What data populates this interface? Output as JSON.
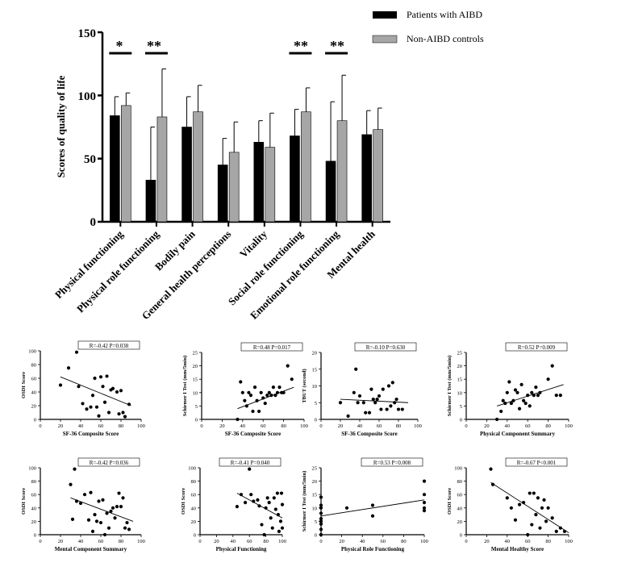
{
  "main_chart": {
    "ylabel": "Scores of quality of life",
    "y_ticks": [
      "0",
      "50",
      "100",
      "150"
    ],
    "ylim": [
      0,
      150
    ],
    "legend": [
      {
        "label": "Patients with AIBD",
        "color": "#000000"
      },
      {
        "label": "Non-AIBD controls",
        "color": "#a6a6a6"
      }
    ],
    "significance_marks": [
      "*",
      "**",
      "**",
      "**"
    ]
  },
  "chart_data": [
    {
      "type": "bar",
      "categories": [
        "Physical functioning",
        "Physical role functioning",
        "Bodily pain",
        "General health perceptions",
        "Vitality",
        "Social role functioning",
        "Emotional role functioning",
        "Mental health"
      ],
      "series": [
        {
          "name": "Patients with AIBD",
          "values": [
            84,
            33,
            75,
            45,
            63,
            68,
            48,
            69
          ],
          "error": [
            15,
            42,
            24,
            21,
            17,
            21,
            47,
            19
          ]
        },
        {
          "name": "Non-AIBD controls",
          "values": [
            92,
            83,
            87,
            55,
            59,
            87,
            80,
            73
          ],
          "error": [
            10,
            38,
            21,
            24,
            27,
            19,
            36,
            17
          ]
        }
      ],
      "significance": [
        {
          "category": "Physical functioning",
          "mark": "*"
        },
        {
          "category": "Physical role functioning",
          "mark": "**"
        },
        {
          "category": "Social role functioning",
          "mark": "**"
        },
        {
          "category": "Emotional role functioning",
          "mark": "**"
        }
      ],
      "ylabel": "Scores of quality of life",
      "ylim": [
        0,
        150
      ],
      "legend_position": "top-right"
    },
    {
      "type": "scatter",
      "annotation": "R=-0.42  P=0.038",
      "xlabel": "SF-36 Composite Score",
      "ylabel": "OSDI Score",
      "xlim": [
        0,
        100
      ],
      "ylim": [
        0,
        100
      ],
      "xticks": [
        "0",
        "20",
        "40",
        "60",
        "80",
        "100"
      ],
      "yticks": [
        "0",
        "20",
        "40",
        "60",
        "80",
        "100"
      ],
      "points": [
        [
          20,
          50
        ],
        [
          28,
          75
        ],
        [
          36,
          98
        ],
        [
          38,
          48
        ],
        [
          42,
          23
        ],
        [
          46,
          15
        ],
        [
          50,
          18
        ],
        [
          52,
          35
        ],
        [
          54,
          60
        ],
        [
          56,
          18
        ],
        [
          58,
          5
        ],
        [
          60,
          62
        ],
        [
          62,
          48
        ],
        [
          64,
          25
        ],
        [
          66,
          63
        ],
        [
          68,
          10
        ],
        [
          70,
          43
        ],
        [
          72,
          45
        ],
        [
          76,
          40
        ],
        [
          78,
          8
        ],
        [
          80,
          42
        ],
        [
          82,
          10
        ],
        [
          84,
          4
        ],
        [
          88,
          22
        ]
      ],
      "fit": [
        [
          20,
          62
        ],
        [
          90,
          20
        ]
      ]
    },
    {
      "type": "scatter",
      "annotation": "R=0.48  P=0.017",
      "xlabel": "SF-36 Composite Score",
      "ylabel": "Schirmer I Test (mm/5min)",
      "xlim": [
        0,
        100
      ],
      "ylim": [
        0,
        25
      ],
      "xticks": [
        "0",
        "20",
        "40",
        "60",
        "80",
        "100"
      ],
      "yticks": [
        "0",
        "5",
        "10",
        "15",
        "20",
        "25"
      ],
      "points": [
        [
          35,
          0
        ],
        [
          38,
          14
        ],
        [
          40,
          10
        ],
        [
          42,
          7
        ],
        [
          44,
          5
        ],
        [
          46,
          10
        ],
        [
          48,
          9
        ],
        [
          50,
          3
        ],
        [
          52,
          12
        ],
        [
          54,
          7
        ],
        [
          56,
          3
        ],
        [
          58,
          10
        ],
        [
          60,
          8
        ],
        [
          62,
          6
        ],
        [
          64,
          9
        ],
        [
          66,
          10
        ],
        [
          68,
          9
        ],
        [
          70,
          12
        ],
        [
          72,
          9
        ],
        [
          74,
          10
        ],
        [
          76,
          12
        ],
        [
          78,
          10
        ],
        [
          80,
          10
        ],
        [
          84,
          20
        ],
        [
          88,
          15
        ]
      ],
      "fit": [
        [
          35,
          4
        ],
        [
          90,
          12
        ]
      ]
    },
    {
      "type": "scatter",
      "annotation": "R=-0.10  P=0.630",
      "xlabel": "SF-36 Composite Score",
      "ylabel": "TBUT (second)",
      "xlim": [
        0,
        100
      ],
      "ylim": [
        0,
        20
      ],
      "xticks": [
        "0",
        "20",
        "40",
        "60",
        "80",
        "100"
      ],
      "yticks": [
        "0",
        "5",
        "10",
        "15",
        "20"
      ],
      "points": [
        [
          20,
          5
        ],
        [
          28,
          1
        ],
        [
          34,
          8
        ],
        [
          36,
          15
        ],
        [
          38,
          5
        ],
        [
          40,
          7
        ],
        [
          44,
          5
        ],
        [
          46,
          2
        ],
        [
          50,
          2
        ],
        [
          52,
          9
        ],
        [
          54,
          6
        ],
        [
          56,
          5
        ],
        [
          58,
          6
        ],
        [
          60,
          7
        ],
        [
          62,
          3
        ],
        [
          64,
          9
        ],
        [
          68,
          3
        ],
        [
          70,
          10
        ],
        [
          72,
          4
        ],
        [
          74,
          11
        ],
        [
          76,
          5
        ],
        [
          78,
          6
        ],
        [
          80,
          3
        ],
        [
          84,
          3
        ]
      ],
      "fit": [
        [
          20,
          6
        ],
        [
          90,
          5
        ]
      ]
    },
    {
      "type": "scatter",
      "annotation": "R=0.52  P=0.009",
      "xlabel": "Physical Component Summary",
      "ylabel": "Schirmer I Test (mm/5min)",
      "xlim": [
        0,
        100
      ],
      "ylim": [
        0,
        25
      ],
      "xticks": [
        "0",
        "20",
        "40",
        "60",
        "80",
        "100"
      ],
      "yticks": [
        "0",
        "5",
        "10",
        "15",
        "20",
        "25"
      ],
      "points": [
        [
          30,
          0
        ],
        [
          34,
          3
        ],
        [
          36,
          7
        ],
        [
          38,
          6
        ],
        [
          40,
          10
        ],
        [
          42,
          14
        ],
        [
          44,
          6
        ],
        [
          46,
          7
        ],
        [
          48,
          11
        ],
        [
          50,
          10
        ],
        [
          52,
          4
        ],
        [
          54,
          13
        ],
        [
          56,
          7
        ],
        [
          58,
          6
        ],
        [
          60,
          9
        ],
        [
          62,
          5
        ],
        [
          64,
          10
        ],
        [
          66,
          9
        ],
        [
          68,
          12
        ],
        [
          70,
          9
        ],
        [
          72,
          10
        ],
        [
          80,
          15
        ],
        [
          84,
          20
        ],
        [
          88,
          9
        ],
        [
          92,
          9
        ]
      ],
      "fit": [
        [
          30,
          5
        ],
        [
          95,
          13
        ]
      ]
    },
    {
      "type": "scatter",
      "annotation": "R=-0.42  P=0.036",
      "xlabel": "Mental Component Summary",
      "ylabel": "OSDI Score",
      "xlim": [
        0,
        100
      ],
      "ylim": [
        0,
        100
      ],
      "xticks": [
        "0",
        "20",
        "40",
        "60",
        "80",
        "100"
      ],
      "yticks": [
        "0",
        "20",
        "40",
        "60",
        "80",
        "100"
      ],
      "points": [
        [
          30,
          75
        ],
        [
          32,
          23
        ],
        [
          34,
          98
        ],
        [
          36,
          50
        ],
        [
          40,
          47
        ],
        [
          44,
          60
        ],
        [
          48,
          22
        ],
        [
          50,
          63
        ],
        [
          52,
          5
        ],
        [
          54,
          30
        ],
        [
          56,
          20
        ],
        [
          58,
          50
        ],
        [
          60,
          18
        ],
        [
          62,
          52
        ],
        [
          64,
          0
        ],
        [
          66,
          32
        ],
        [
          68,
          10
        ],
        [
          70,
          35
        ],
        [
          72,
          40
        ],
        [
          74,
          25
        ],
        [
          76,
          42
        ],
        [
          78,
          62
        ],
        [
          80,
          42
        ],
        [
          82,
          55
        ],
        [
          84,
          10
        ],
        [
          86,
          18
        ],
        [
          88,
          8
        ]
      ],
      "fit": [
        [
          30,
          55
        ],
        [
          92,
          20
        ]
      ]
    },
    {
      "type": "scatter",
      "annotation": "R=-0.41  P=0.040",
      "xlabel": "Physical Functioning",
      "ylabel": "OSDI Score",
      "xlim": [
        0,
        100
      ],
      "ylim": [
        0,
        100
      ],
      "xticks": [
        "0",
        "20",
        "40",
        "60",
        "80",
        "100"
      ],
      "yticks": [
        "0",
        "20",
        "40",
        "60",
        "80",
        "100"
      ],
      "points": [
        [
          45,
          42
        ],
        [
          50,
          60
        ],
        [
          55,
          48
        ],
        [
          60,
          98
        ],
        [
          62,
          60
        ],
        [
          65,
          50
        ],
        [
          70,
          52
        ],
        [
          72,
          43
        ],
        [
          75,
          15
        ],
        [
          78,
          0
        ],
        [
          80,
          40
        ],
        [
          82,
          55
        ],
        [
          84,
          48
        ],
        [
          86,
          25
        ],
        [
          88,
          10
        ],
        [
          90,
          55
        ],
        [
          92,
          38
        ],
        [
          94,
          62
        ],
        [
          95,
          30
        ],
        [
          96,
          5
        ],
        [
          98,
          20
        ],
        [
          99,
          62
        ],
        [
          100,
          45
        ],
        [
          100,
          10
        ]
      ],
      "fit": [
        [
          45,
          62
        ],
        [
          100,
          25
        ]
      ]
    },
    {
      "type": "scatter",
      "annotation": "R=0.53  P=0.008",
      "xlabel": "Physical Role Functioning",
      "ylabel": "Schirmer I Test (mm/5min)",
      "xlim": [
        0,
        100
      ],
      "ylim": [
        0,
        25
      ],
      "xticks": [
        "0",
        "20",
        "40",
        "60",
        "80",
        "100"
      ],
      "yticks": [
        "0",
        "5",
        "10",
        "15",
        "20",
        "25"
      ],
      "points": [
        [
          0,
          0
        ],
        [
          0,
          2
        ],
        [
          0,
          4
        ],
        [
          0,
          5
        ],
        [
          0,
          6
        ],
        [
          0,
          8
        ],
        [
          0,
          10
        ],
        [
          0,
          11
        ],
        [
          0,
          14
        ],
        [
          25,
          10
        ],
        [
          50,
          7
        ],
        [
          50,
          11
        ],
        [
          100,
          9
        ],
        [
          100,
          10
        ],
        [
          100,
          12
        ],
        [
          100,
          15
        ],
        [
          100,
          20
        ]
      ],
      "fit": [
        [
          0,
          7
        ],
        [
          100,
          13
        ]
      ]
    },
    {
      "type": "scatter",
      "annotation": "R=-0.67  P<0.001",
      "xlabel": "Mental Healthy Score",
      "ylabel": "OSDI Score",
      "xlim": [
        0,
        100
      ],
      "ylim": [
        0,
        100
      ],
      "xticks": [
        "0",
        "20",
        "40",
        "60",
        "80",
        "100"
      ],
      "yticks": [
        "0",
        "20",
        "40",
        "60",
        "80",
        "100"
      ],
      "points": [
        [
          24,
          98
        ],
        [
          26,
          75
        ],
        [
          40,
          55
        ],
        [
          44,
          40
        ],
        [
          48,
          22
        ],
        [
          52,
          45
        ],
        [
          56,
          48
        ],
        [
          60,
          0
        ],
        [
          62,
          62
        ],
        [
          64,
          15
        ],
        [
          66,
          62
        ],
        [
          68,
          30
        ],
        [
          70,
          55
        ],
        [
          72,
          10
        ],
        [
          74,
          40
        ],
        [
          76,
          52
        ],
        [
          78,
          20
        ],
        [
          80,
          40
        ],
        [
          84,
          25
        ],
        [
          88,
          5
        ],
        [
          92,
          10
        ],
        [
          96,
          5
        ]
      ],
      "fit": [
        [
          24,
          78
        ],
        [
          100,
          3
        ]
      ]
    }
  ]
}
